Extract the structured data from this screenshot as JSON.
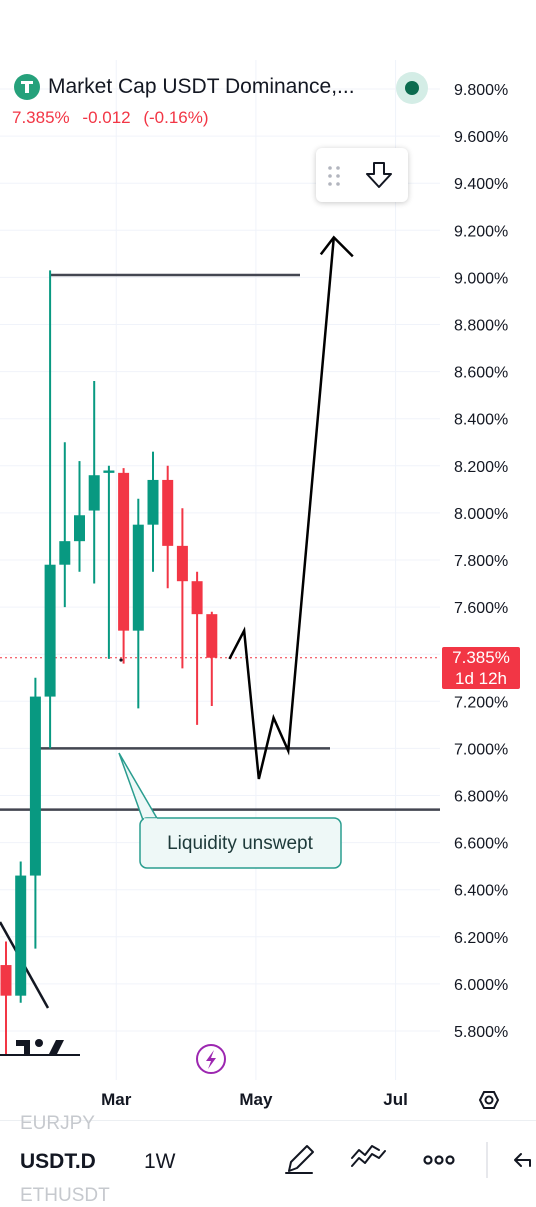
{
  "header": {
    "title": "Market Cap USDT Dominance,...",
    "last": "7.385%",
    "change": "-0.012",
    "change_pct": "(-0.16%)"
  },
  "price_badge": {
    "value": "7.385%",
    "countdown": "1d 12h"
  },
  "annotation": {
    "text": "Liquidity unswept"
  },
  "bottom_bar": {
    "symbol": "USDT.D",
    "timeframe": "1W",
    "ghost_above": "EURJPY",
    "ghost_below": "ETHUSDT"
  },
  "colors": {
    "up": "#089981",
    "down": "#f23645",
    "text": "#131722",
    "grid": "#f0f3fa"
  },
  "chart_data": {
    "type": "candlestick",
    "title": "Market Cap USDT Dominance,...",
    "y_ticks": [
      "9.800%",
      "9.600%",
      "9.400%",
      "9.200%",
      "9.000%",
      "8.800%",
      "8.600%",
      "8.400%",
      "8.200%",
      "8.000%",
      "7.800%",
      "7.600%",
      "7.400%",
      "7.200%",
      "7.000%",
      "6.800%",
      "6.600%",
      "6.400%",
      "6.200%",
      "6.000%",
      "5.800%"
    ],
    "x_ticks": [
      {
        "label": "Mar",
        "x": 7.5
      },
      {
        "label": "May",
        "x": 17
      },
      {
        "label": "Jul",
        "x": 26.5
      }
    ],
    "ylim": [
      5.7,
      9.95
    ],
    "xlim": [
      -0.5,
      34.5
    ],
    "candles": [
      {
        "x": 0,
        "o": 6.08,
        "h": 6.18,
        "l": 5.7,
        "c": 5.95
      },
      {
        "x": 1,
        "o": 5.95,
        "h": 6.52,
        "l": 5.92,
        "c": 6.46
      },
      {
        "x": 2,
        "o": 6.46,
        "h": 7.3,
        "l": 6.15,
        "c": 7.22
      },
      {
        "x": 3,
        "o": 7.22,
        "h": 9.03,
        "l": 7.0,
        "c": 7.78
      },
      {
        "x": 4,
        "o": 7.78,
        "h": 8.3,
        "l": 7.6,
        "c": 7.88
      },
      {
        "x": 5,
        "o": 7.88,
        "h": 8.22,
        "l": 7.75,
        "c": 7.99
      },
      {
        "x": 6,
        "o": 8.01,
        "h": 8.56,
        "l": 7.7,
        "c": 8.16
      },
      {
        "x": 7,
        "o": 8.17,
        "h": 8.2,
        "l": 7.38,
        "c": 8.18
      },
      {
        "x": 8,
        "o": 8.17,
        "h": 8.19,
        "l": 7.36,
        "c": 7.5
      },
      {
        "x": 9,
        "o": 7.5,
        "h": 8.06,
        "l": 7.17,
        "c": 7.95
      },
      {
        "x": 10,
        "o": 7.95,
        "h": 8.26,
        "l": 7.75,
        "c": 8.14
      },
      {
        "x": 11,
        "o": 8.14,
        "h": 8.2,
        "l": 7.68,
        "c": 7.86
      },
      {
        "x": 12,
        "o": 7.86,
        "h": 8.02,
        "l": 7.34,
        "c": 7.71
      },
      {
        "x": 13,
        "o": 7.71,
        "h": 7.75,
        "l": 7.1,
        "c": 7.57
      },
      {
        "x": 14,
        "o": 7.57,
        "h": 7.58,
        "l": 7.18,
        "c": 7.385
      }
    ],
    "current_price": 7.385,
    "levels": [
      9.01,
      7.0,
      6.74
    ],
    "projection": [
      {
        "x": 15.2,
        "y": 7.38
      },
      {
        "x": 16.2,
        "y": 7.5
      },
      {
        "x": 17.2,
        "y": 6.87
      },
      {
        "x": 18.2,
        "y": 7.13
      },
      {
        "x": 19.2,
        "y": 6.99
      },
      {
        "x": 22.3,
        "y": 9.17
      }
    ],
    "annotation": "Liquidity unswept",
    "grid": true
  }
}
